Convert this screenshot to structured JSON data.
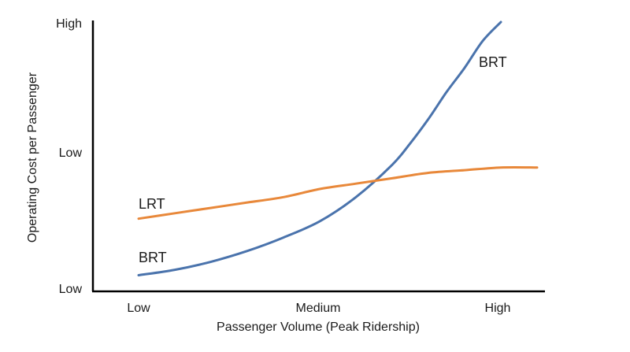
{
  "chart_data": {
    "type": "line",
    "xlabel": "Passenger Volume (Peak Ridership)",
    "ylabel": "Operating Cost per Passenger",
    "x_ticks": [
      "Low",
      "Medium",
      "High"
    ],
    "y_ticks": [
      "Low",
      "Low",
      "High"
    ],
    "xlim": [
      0,
      1.12
    ],
    "ylim": [
      0,
      1
    ],
    "grid": false,
    "legend": "none",
    "series": [
      {
        "name": "BRT",
        "color": "#4A73AC",
        "x": [
          0.0,
          0.1,
          0.2,
          0.3,
          0.4,
          0.5,
          0.6,
          0.7,
          0.75,
          0.8,
          0.85,
          0.9,
          0.95,
          1.0,
          1.05,
          1.1
        ],
        "y": [
          0.06,
          0.08,
          0.11,
          0.15,
          0.2,
          0.26,
          0.35,
          0.47,
          0.55,
          0.64,
          0.74,
          0.83,
          0.93,
          1.0,
          1.0,
          1.0
        ]
      },
      {
        "name": "LRT",
        "color": "#E8883A",
        "x": [
          0.0,
          0.1,
          0.2,
          0.3,
          0.4,
          0.5,
          0.6,
          0.7,
          0.8,
          0.9,
          1.0,
          1.1
        ],
        "y": [
          0.27,
          0.29,
          0.31,
          0.33,
          0.35,
          0.38,
          0.4,
          0.42,
          0.44,
          0.45,
          0.46,
          0.46
        ]
      }
    ],
    "series_labels": [
      {
        "text": "LRT",
        "series": 1
      },
      {
        "text": "BRT",
        "series": 0
      },
      {
        "text": "BRT",
        "series": 0
      }
    ],
    "axis_color": "#000000"
  }
}
